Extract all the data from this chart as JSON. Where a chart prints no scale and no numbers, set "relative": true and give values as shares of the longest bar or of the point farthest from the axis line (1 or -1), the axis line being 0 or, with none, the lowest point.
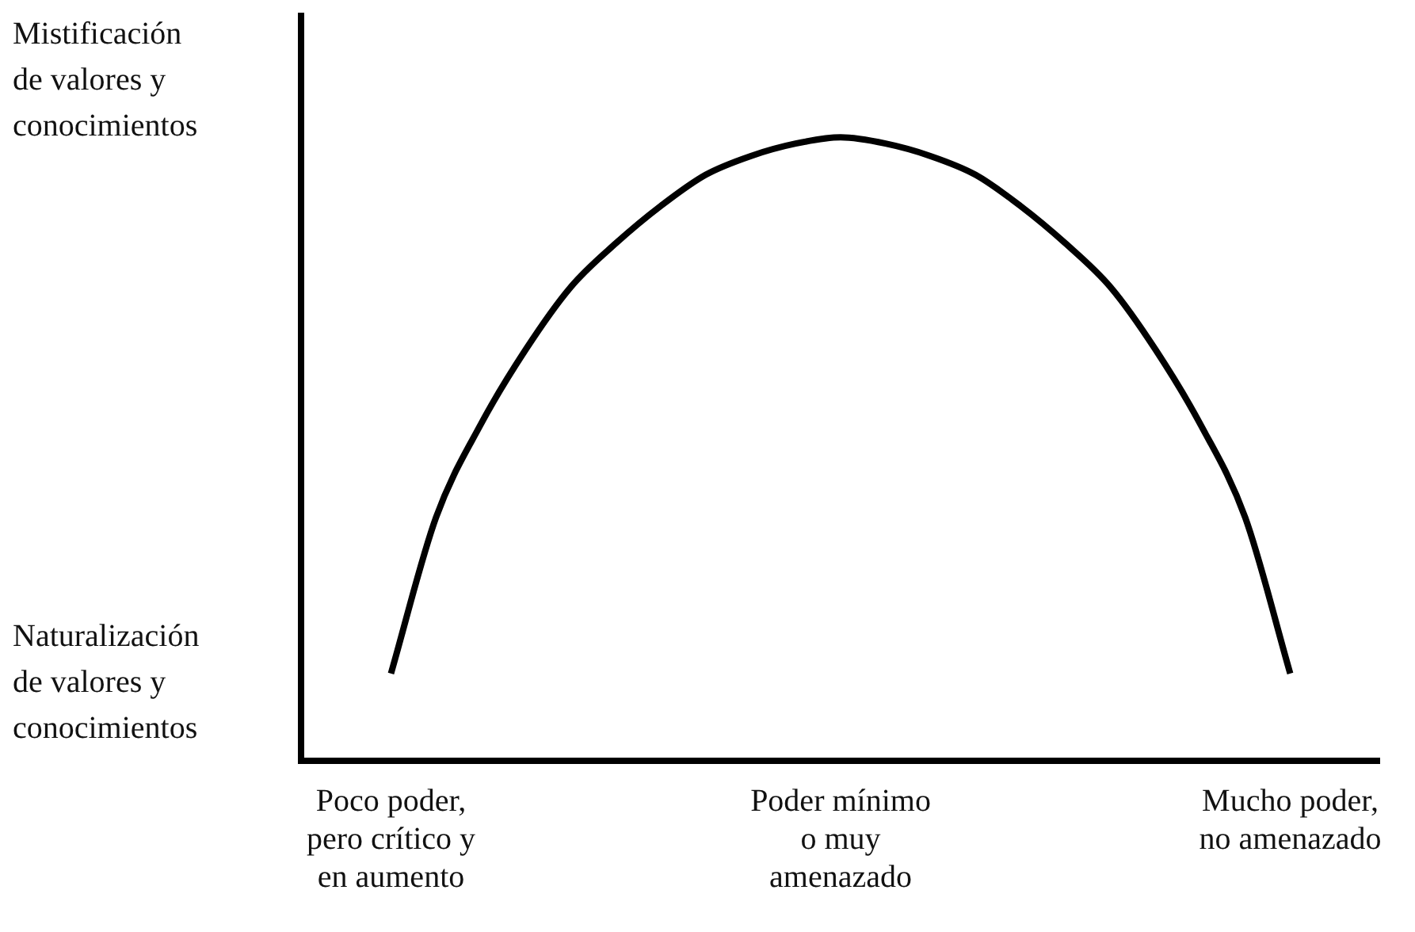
{
  "chart_data": {
    "type": "line",
    "relative": true,
    "color": "#000000",
    "categories": [
      null,
      null,
      "Poco poder,\npero crítico y\nen aumento",
      null,
      null,
      null,
      null,
      null,
      null,
      null,
      null,
      null,
      "Poder mínimo\no muy\namenazado",
      null,
      null,
      null,
      null,
      null,
      null,
      null,
      null,
      null,
      "Mucho poder,\nno amenazado",
      null,
      null
    ],
    "values": [
      null,
      null,
      0.14,
      0.39,
      0.54,
      0.66,
      0.76,
      0.83,
      0.89,
      0.94,
      0.97,
      0.99,
      1,
      0.99,
      0.97,
      0.94,
      0.89,
      0.83,
      0.76,
      0.66,
      0.54,
      0.39,
      0.14,
      null,
      null
    ],
    "annotations": [
      "Mistificación\nde valores y\nconocimientos",
      "Naturalización\nde valores y\nconocimientos"
    ]
  }
}
